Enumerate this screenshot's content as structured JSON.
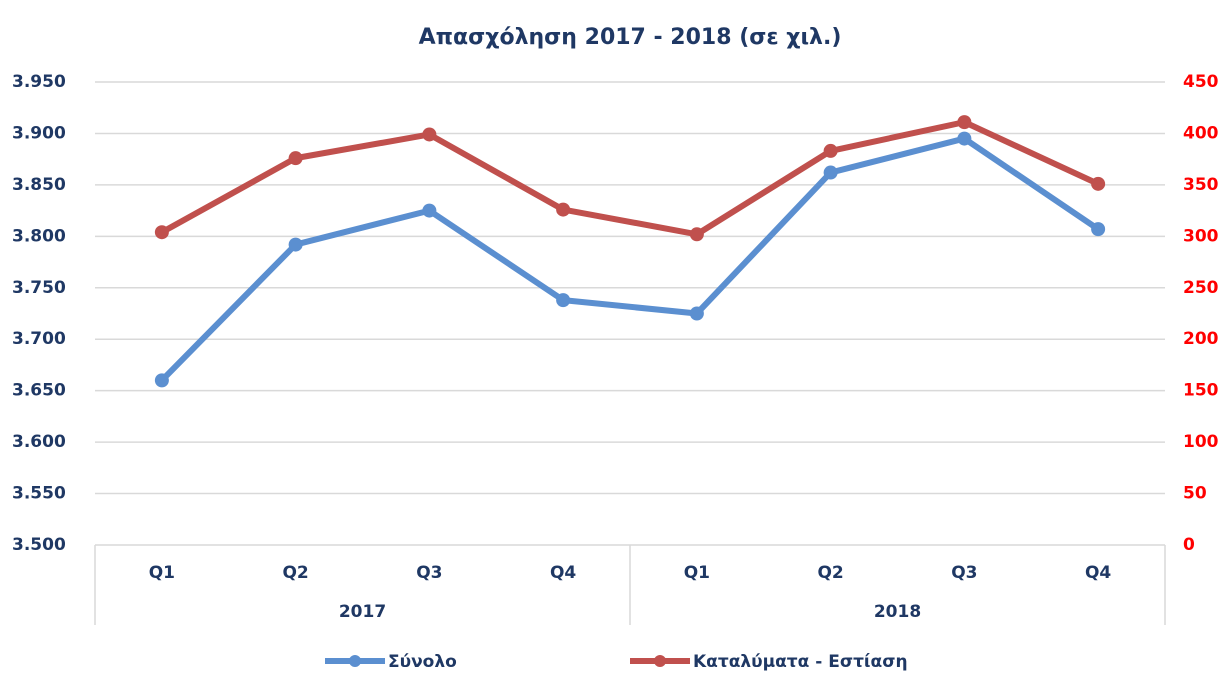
{
  "chart_data": {
    "type": "line",
    "title": "Απασχόληση 2017 - 2018 (σε χιλ.)",
    "categories": [
      "Q1",
      "Q2",
      "Q3",
      "Q4",
      "Q1",
      "Q2",
      "Q3",
      "Q4"
    ],
    "x_groups": [
      "2017",
      "2018"
    ],
    "series": [
      {
        "name": "Σύνολο",
        "color": "#5b8fd0",
        "values": [
          3660,
          3792,
          3825,
          3738,
          3725,
          3862,
          3895,
          3807
        ]
      },
      {
        "name": "Καταλύματα - Εστίαση",
        "color": "#c0504d",
        "axis": "y2",
        "values": [
          304,
          376,
          399,
          326,
          302,
          383,
          411,
          351
        ]
      }
    ],
    "ylim": [
      3500,
      3950
    ],
    "yticks": [
      {
        "value": 3500,
        "label": "3.500"
      },
      {
        "value": 3550,
        "label": "3.550"
      },
      {
        "value": 3600,
        "label": "3.600"
      },
      {
        "value": 3650,
        "label": "3.650"
      },
      {
        "value": 3700,
        "label": "3.700"
      },
      {
        "value": 3750,
        "label": "3.750"
      },
      {
        "value": 3800,
        "label": "3.800"
      },
      {
        "value": 3850,
        "label": "3.850"
      },
      {
        "value": 3900,
        "label": "3.900"
      },
      {
        "value": 3950,
        "label": "3.950"
      }
    ],
    "y2lim": [
      0,
      450
    ],
    "y2ticks": [
      0,
      50,
      100,
      150,
      200,
      250,
      300,
      350,
      400,
      450
    ],
    "grid": true,
    "legend": "bottom"
  }
}
